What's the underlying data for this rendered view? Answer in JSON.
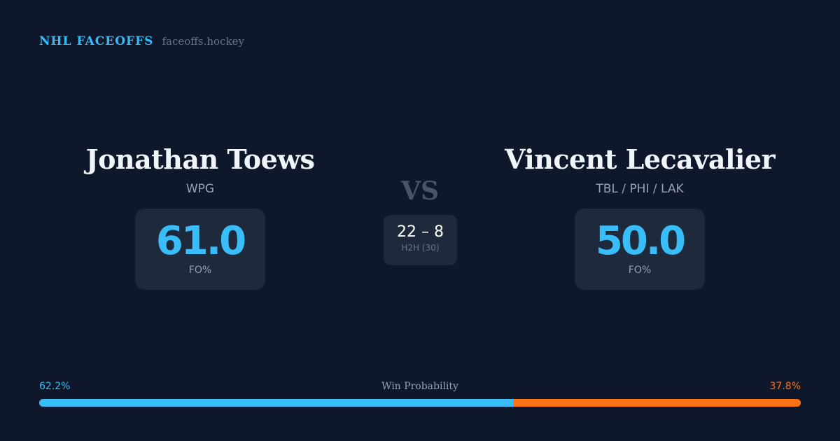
{
  "brand": {
    "title": "NHL FACEOFFS",
    "url": "faceoffs.hockey"
  },
  "player1": {
    "name": "Jonathan Toews",
    "team": "WPG",
    "fo_pct": "61.0",
    "fo_label": "FO%"
  },
  "player2": {
    "name": "Vincent Lecavalier",
    "team": "TBL / PHI / LAK",
    "fo_pct": "50.0",
    "fo_label": "FO%"
  },
  "vs": "VS",
  "h2h": {
    "score": "22 – 8",
    "label": "H2H (30)"
  },
  "win_probability": {
    "label": "Win Probability",
    "p1": "62.2%",
    "p2": "37.8%",
    "p1_value": 62.2,
    "colors": {
      "p1": "#38bdf8",
      "p2": "#f97316"
    }
  }
}
